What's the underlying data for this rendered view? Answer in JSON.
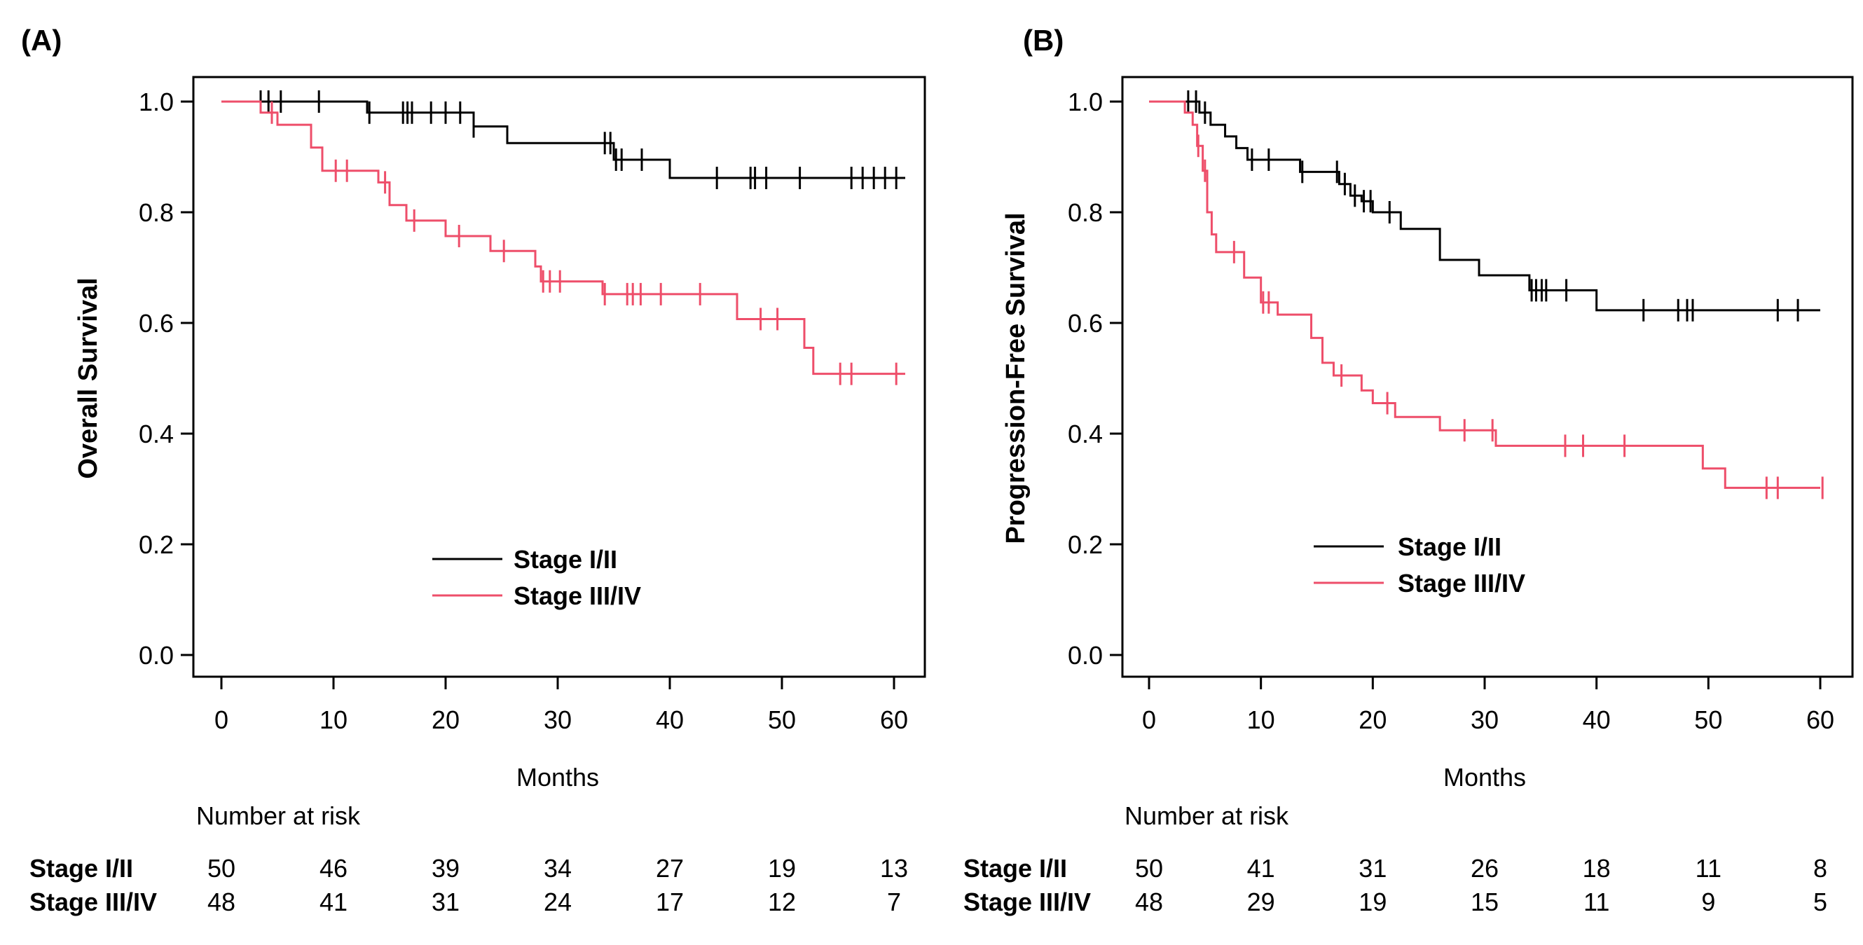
{
  "chart_data": [
    {
      "type": "line",
      "subtype": "kaplan-meier",
      "panel_label": "(A)",
      "title": "",
      "xlabel": "Months",
      "ylabel": "Overall Survival",
      "xlim": [
        0,
        60
      ],
      "ylim": [
        0,
        1
      ],
      "xticks": [
        "0",
        "10",
        "20",
        "30",
        "40",
        "50",
        "60"
      ],
      "yticks": [
        "0.0",
        "0.2",
        "0.4",
        "0.6",
        "0.8",
        "1.0"
      ],
      "legend_position": "center-lower",
      "series": [
        {
          "name": "Stage I/II",
          "color": "#000000",
          "steps": [
            [
              0,
              1.0
            ],
            [
              13,
              0.98
            ],
            [
              22.5,
              0.955
            ],
            [
              25.5,
              0.925
            ],
            [
              35,
              0.895
            ],
            [
              40,
              0.862
            ],
            [
              61,
              0.862
            ]
          ],
          "censor_times": [
            3.5,
            4.2,
            5.3,
            8.7,
            13.2,
            16.2,
            16.6,
            17,
            18.7,
            20,
            21.3,
            22.5,
            34.2,
            34.7,
            35.2,
            35.7,
            37.5,
            44.2,
            47.2,
            47.6,
            48.6,
            51.6,
            56.2,
            57.2,
            58.2,
            59.2,
            60.2
          ]
        },
        {
          "name": "Stage III/IV",
          "color": "#EE4E6A",
          "steps": [
            [
              0,
              1.0
            ],
            [
              3.5,
              0.98
            ],
            [
              5,
              0.958
            ],
            [
              8,
              0.917
            ],
            [
              9,
              0.875
            ],
            [
              14,
              0.854
            ],
            [
              15,
              0.813
            ],
            [
              16.5,
              0.785
            ],
            [
              20,
              0.757
            ],
            [
              24,
              0.73
            ],
            [
              28,
              0.702
            ],
            [
              28.5,
              0.675
            ],
            [
              34,
              0.652
            ],
            [
              46,
              0.607
            ],
            [
              52,
              0.555
            ],
            [
              52.8,
              0.508
            ],
            [
              61,
              0.508
            ]
          ],
          "censor_times": [
            4.5,
            10.2,
            11.2,
            14.6,
            17.2,
            21.2,
            25.2,
            28.7,
            29.3,
            30.2,
            34.2,
            36.2,
            36.7,
            37.4,
            39.2,
            42.7,
            48.1,
            49.6,
            55.2,
            56.2,
            60.2
          ]
        }
      ],
      "risk_table": {
        "title": "Number at risk",
        "times": [
          "0",
          "10",
          "20",
          "30",
          "40",
          "50",
          "60"
        ],
        "groups": [
          {
            "name": "Stage I/II",
            "counts": [
              "50",
              "46",
              "39",
              "34",
              "27",
              "19",
              "13"
            ]
          },
          {
            "name": "Stage III/IV",
            "counts": [
              "48",
              "41",
              "31",
              "24",
              "17",
              "12",
              "7"
            ]
          }
        ]
      }
    },
    {
      "type": "line",
      "subtype": "kaplan-meier",
      "panel_label": "(B)",
      "title": "",
      "xlabel": "Months",
      "ylabel": "Progression-Free Survival",
      "xlim": [
        0,
        60
      ],
      "ylim": [
        0,
        1
      ],
      "xticks": [
        "0",
        "10",
        "20",
        "30",
        "40",
        "50",
        "60"
      ],
      "yticks": [
        "0.0",
        "0.2",
        "0.4",
        "0.6",
        "0.8",
        "1.0"
      ],
      "legend_position": "center-lower",
      "series": [
        {
          "name": "Stage I/II",
          "color": "#000000",
          "steps": [
            [
              0,
              1.0
            ],
            [
              4.5,
              0.98
            ],
            [
              5.5,
              0.958
            ],
            [
              6.8,
              0.937
            ],
            [
              7.8,
              0.916
            ],
            [
              8.8,
              0.895
            ],
            [
              13.5,
              0.873
            ],
            [
              17,
              0.851
            ],
            [
              18,
              0.83
            ],
            [
              19,
              0.82
            ],
            [
              20,
              0.8
            ],
            [
              22.5,
              0.77
            ],
            [
              26,
              0.714
            ],
            [
              29.5,
              0.686
            ],
            [
              34,
              0.659
            ],
            [
              40,
              0.623
            ],
            [
              60,
              0.623
            ]
          ],
          "censor_times": [
            3.5,
            4.2,
            5,
            9.2,
            10.7,
            13.7,
            16.8,
            17.5,
            18.4,
            19.2,
            19.8,
            21.5,
            34.2,
            34.6,
            35.1,
            35.5,
            37.3,
            44.2,
            47.3,
            48.1,
            48.6,
            56.2,
            58
          ]
        },
        {
          "name": "Stage III/IV",
          "color": "#EE4E6A",
          "steps": [
            [
              0,
              1.0
            ],
            [
              3.2,
              0.98
            ],
            [
              3.9,
              0.958
            ],
            [
              4.3,
              0.92
            ],
            [
              4.8,
              0.875
            ],
            [
              5.2,
              0.8
            ],
            [
              5.6,
              0.76
            ],
            [
              6,
              0.728
            ],
            [
              8.5,
              0.682
            ],
            [
              10,
              0.637
            ],
            [
              11.5,
              0.615
            ],
            [
              14.5,
              0.573
            ],
            [
              15.5,
              0.528
            ],
            [
              16.5,
              0.505
            ],
            [
              19,
              0.478
            ],
            [
              20,
              0.455
            ],
            [
              22,
              0.43
            ],
            [
              26,
              0.406
            ],
            [
              31,
              0.378
            ],
            [
              49.5,
              0.337
            ],
            [
              51.5,
              0.302
            ],
            [
              60,
              0.302
            ]
          ],
          "censor_times": [
            4.4,
            5,
            7.6,
            10.2,
            10.7,
            17.2,
            21.3,
            28.2,
            30.7,
            37.2,
            38.8,
            42.5,
            55.2,
            56.2,
            60.2
          ]
        }
      ],
      "risk_table": {
        "title": "Number at risk",
        "times": [
          "0",
          "10",
          "20",
          "30",
          "40",
          "50",
          "60"
        ],
        "groups": [
          {
            "name": "Stage I/II",
            "counts": [
              "50",
              "41",
              "31",
              "26",
              "18",
              "11",
              "8"
            ]
          },
          {
            "name": "Stage III/IV",
            "counts": [
              "48",
              "29",
              "19",
              "15",
              "11",
              "9",
              "5"
            ]
          }
        ]
      }
    }
  ]
}
